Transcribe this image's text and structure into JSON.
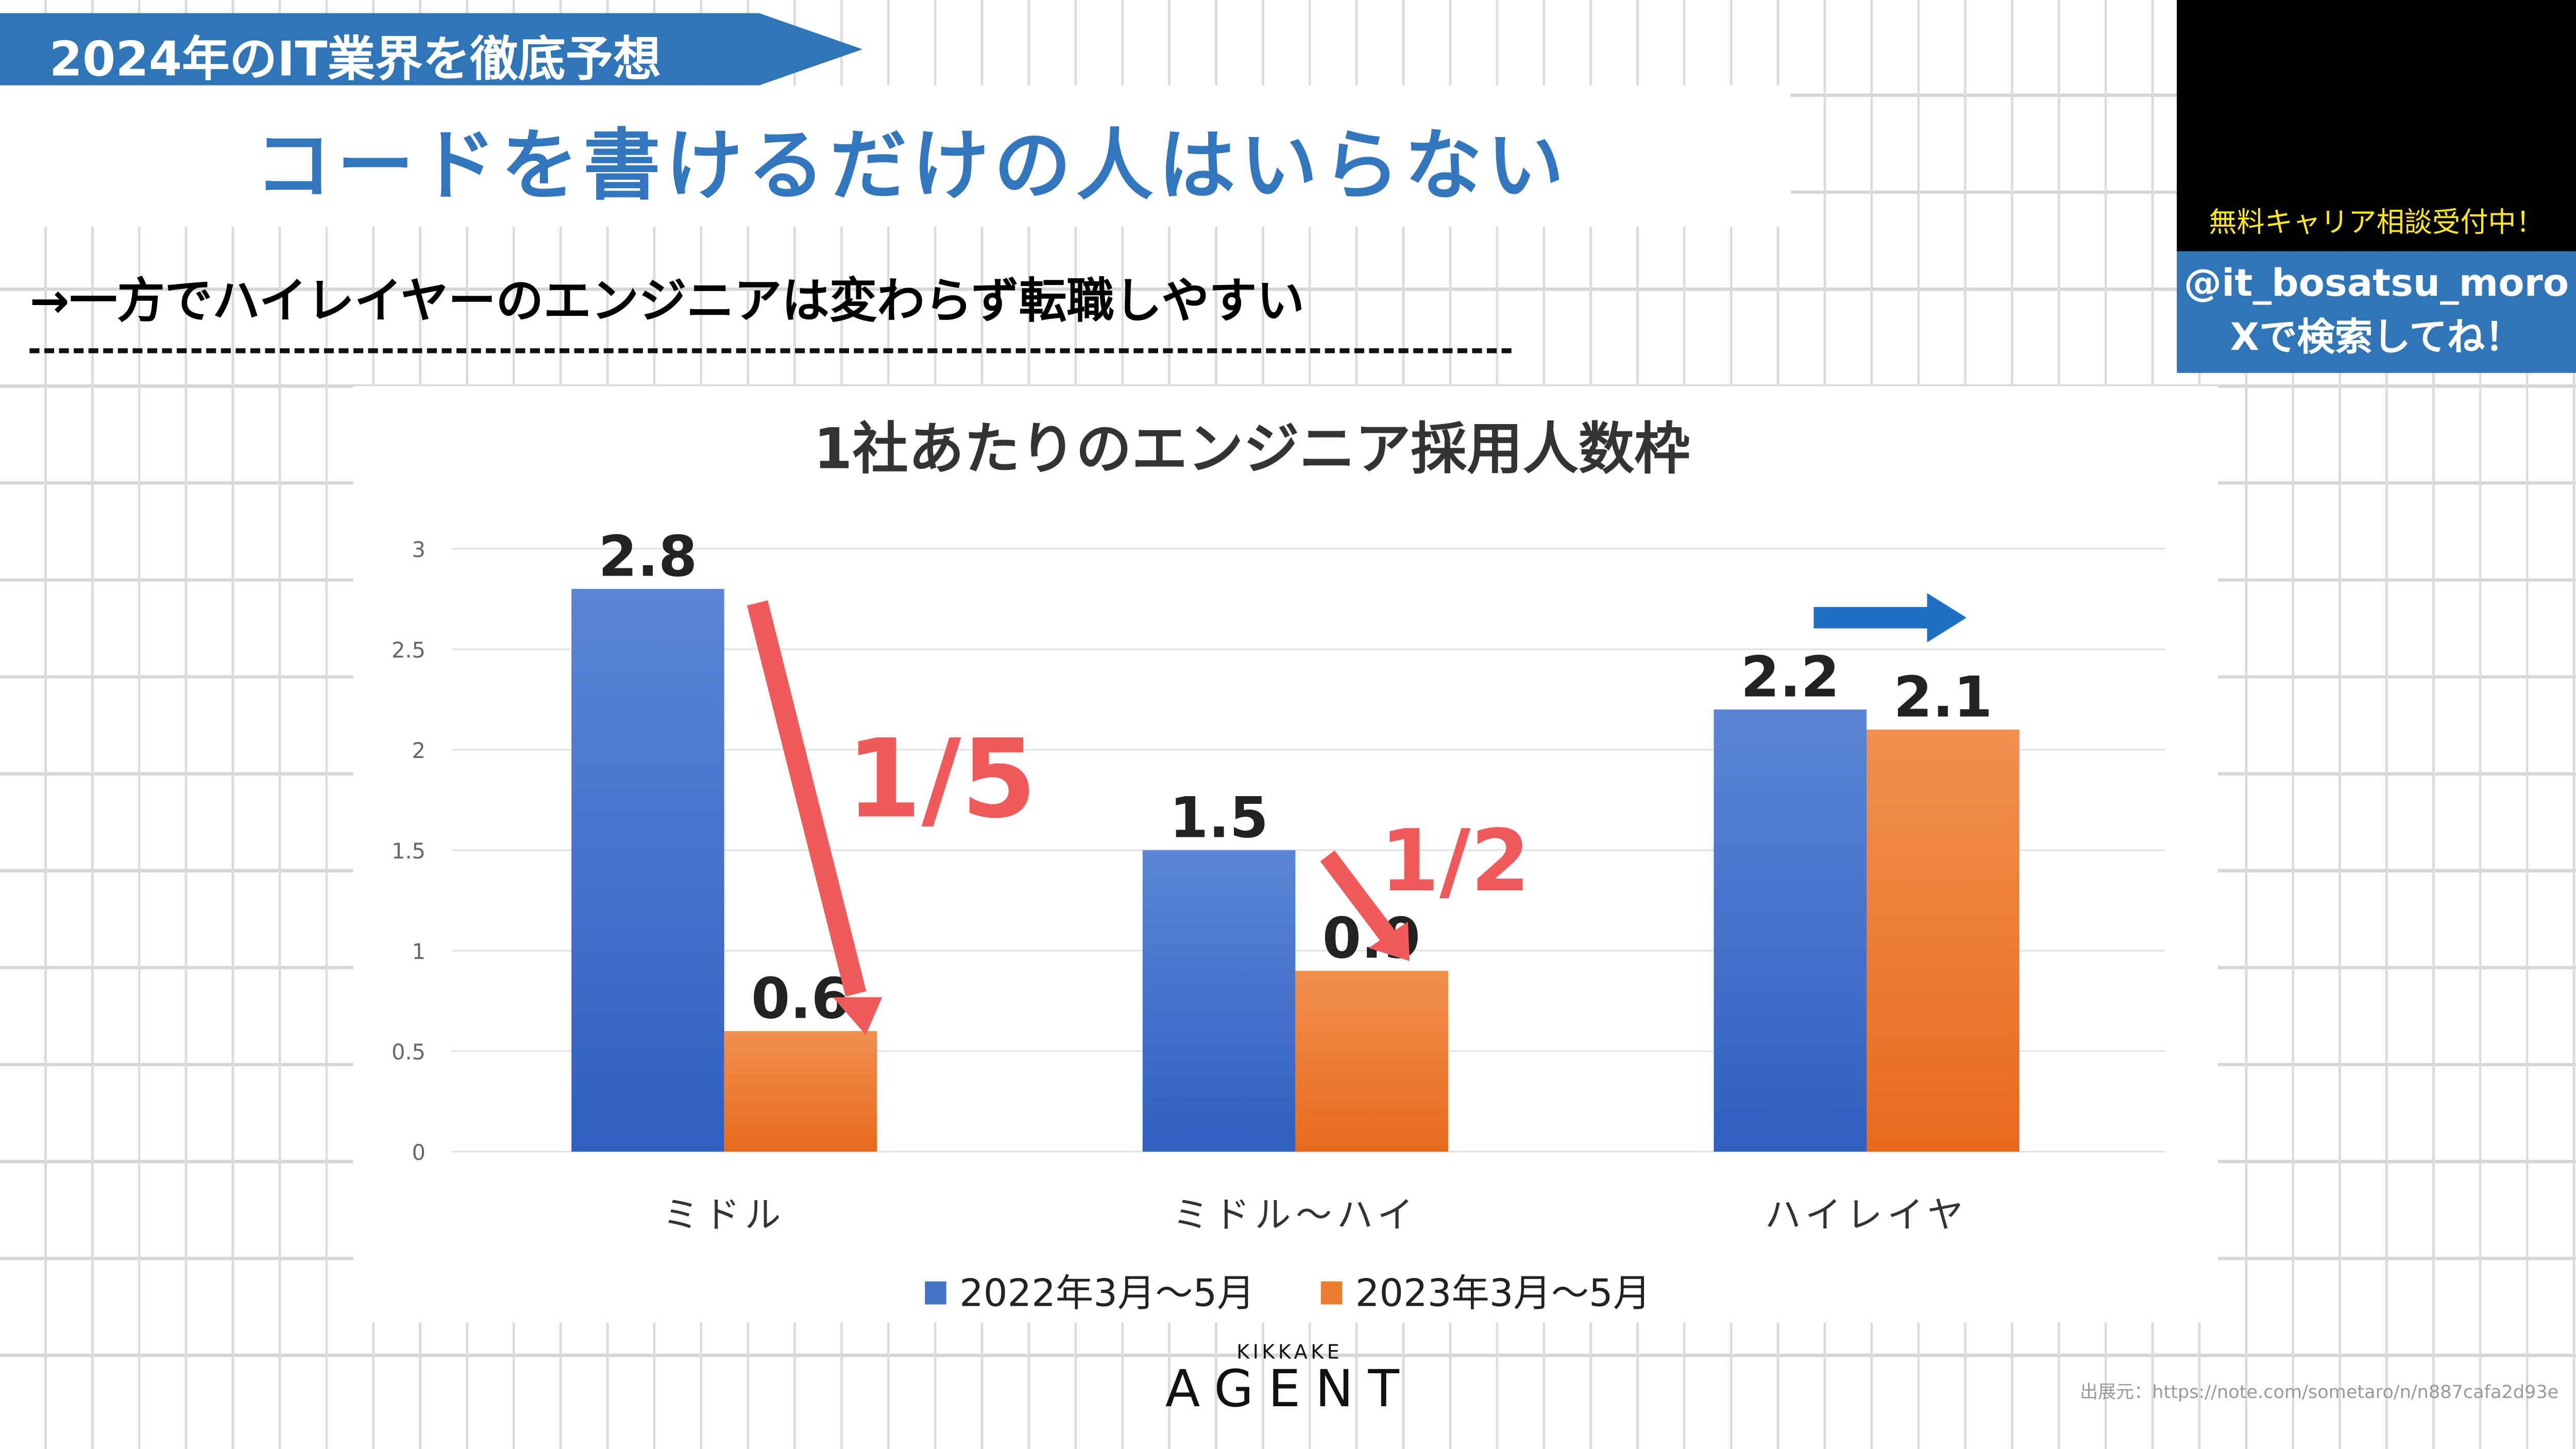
{
  "banner": {
    "label": "2024年のIT業界を徹底予想",
    "color": "#2f75b8"
  },
  "title": "コードを書けるだけの人はいらない",
  "subtitle": "→一方でハイレイヤーのエンジニアは変わらず転職しやすい",
  "right_panel": {
    "promo": "無料キャリア相談受付中！",
    "handle": "@it_bosatsu_moro",
    "search_hint": "Xで検索してね！"
  },
  "logo": {
    "top": "KIKKAKE",
    "bottom": "AGENT"
  },
  "source": "出展元：https://note.com/sometaro/n/n887cafa2d93e",
  "chart_data": {
    "type": "bar",
    "title": "1社あたりのエンジニア採用人数枠",
    "categories": [
      "ミドル",
      "ミドル〜ハイ",
      "ハイレイヤ"
    ],
    "series": [
      {
        "name": "2022年3月〜5月",
        "values": [
          2.8,
          1.5,
          2.2
        ],
        "color": "#4472c4"
      },
      {
        "name": "2023年3月〜5月",
        "values": [
          0.6,
          0.9,
          2.1
        ],
        "color": "#ed7d31"
      }
    ],
    "value_labels": [
      [
        "2.8",
        "1.5",
        "2.2"
      ],
      [
        "0.6",
        "0.9",
        "2.1"
      ]
    ],
    "ylim": [
      0,
      3
    ],
    "yticks": [
      "0",
      "0.5",
      "1",
      "1.5",
      "2",
      "2.5",
      "3"
    ],
    "grid": true,
    "legend": "bottom",
    "annotations": [
      "1/5",
      "1/2"
    ]
  }
}
